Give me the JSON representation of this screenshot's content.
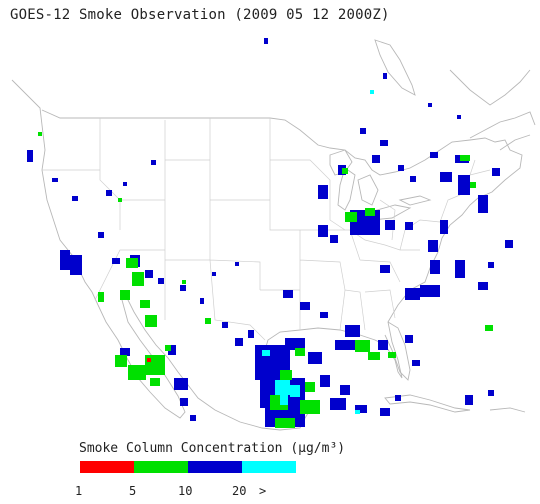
{
  "title": "GOES-12 Smoke Observation (2009 05 12  2000Z)",
  "legend": {
    "title": "Smoke Column Concentration (μg/m³)",
    "colors": [
      "#ff0000",
      "#00e000",
      "#0000cc",
      "#00ffff"
    ],
    "ticks": [
      "1",
      "5",
      "10",
      "20",
      ">"
    ]
  }
}
